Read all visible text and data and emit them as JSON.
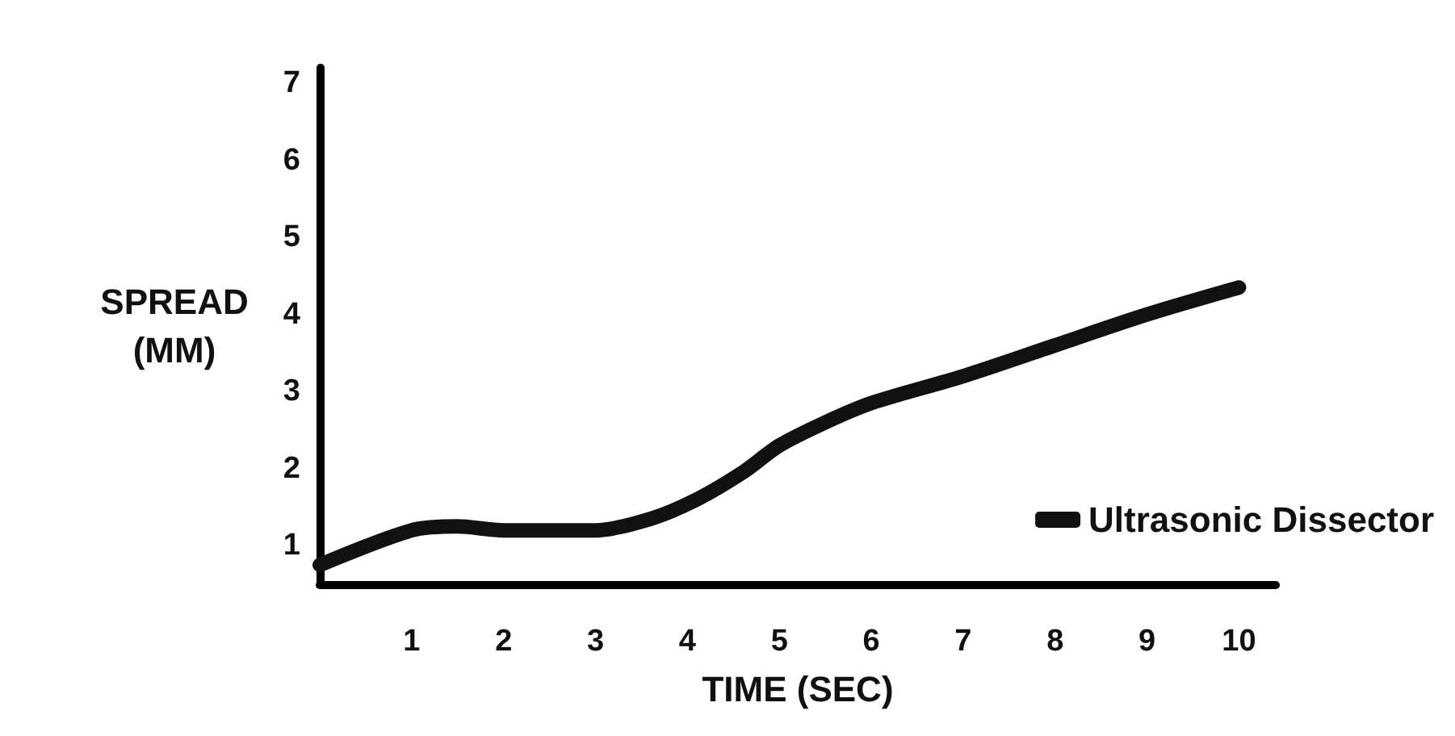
{
  "chart_data": {
    "type": "line",
    "xlabel": "TIME (SEC)",
    "ylabel": "SPREAD\n(MM)",
    "x": [
      0,
      1,
      1.5,
      2,
      3,
      3.6,
      4.1,
      4.6,
      5,
      5.5,
      6,
      7,
      8,
      9,
      10
    ],
    "series": [
      {
        "name": "Ultrasonic Dissector",
        "color": "#111111",
        "values": [
          0.75,
          1.2,
          1.25,
          1.2,
          1.2,
          1.35,
          1.6,
          1.95,
          2.3,
          2.6,
          2.85,
          3.2,
          3.6,
          4.0,
          4.35
        ]
      }
    ],
    "xlim": [
      0,
      10.4
    ],
    "xticks": [
      1,
      2,
      3,
      4,
      5,
      6,
      7,
      8,
      9,
      10
    ],
    "ylim": [
      0.5,
      7.2
    ],
    "yticks": [
      1,
      2,
      3,
      4,
      5,
      6,
      7
    ],
    "grid": false,
    "legend": "bottom right",
    "line_style": "solid"
  }
}
